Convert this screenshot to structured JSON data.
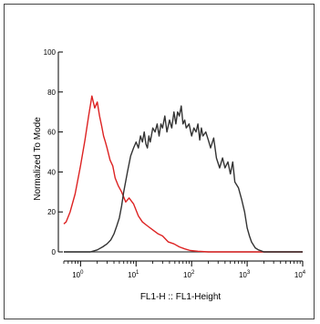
{
  "chart_data": {
    "type": "area",
    "xlabel": "FL1-H :: FL1-Height",
    "ylabel": "Normalized To Mode",
    "x_scale": "log",
    "xlim": [
      0.5,
      10000
    ],
    "ylim": [
      0,
      100
    ],
    "x_ticks": [
      {
        "value": 1,
        "base": "10",
        "exp": "0"
      },
      {
        "value": 10,
        "base": "10",
        "exp": "1"
      },
      {
        "value": 100,
        "base": "10",
        "exp": "2"
      },
      {
        "value": 1000,
        "base": "10",
        "exp": "3"
      },
      {
        "value": 10000,
        "base": "10",
        "exp": "4"
      }
    ],
    "y_ticks": [
      0,
      20,
      40,
      60,
      80,
      100
    ],
    "grid": false,
    "series": [
      {
        "color": "#dd2222",
        "x": [
          0.5,
          0.55,
          0.65,
          0.8,
          1.0,
          1.2,
          1.4,
          1.6,
          1.8,
          2.0,
          2.2,
          2.4,
          2.6,
          2.8,
          3.0,
          3.4,
          3.8,
          4.2,
          4.8,
          5.5,
          6.5,
          7.5,
          9,
          11,
          13,
          16,
          20,
          25,
          30,
          38,
          48,
          60,
          75,
          95,
          130,
          200,
          1000,
          10000
        ],
        "y": [
          14,
          15,
          20,
          29,
          43,
          56,
          68,
          78,
          72,
          75,
          68,
          63,
          58,
          55,
          52,
          46,
          43,
          37,
          33,
          30,
          25,
          27,
          24,
          18,
          15,
          13,
          11,
          9,
          8,
          5,
          4,
          2.5,
          1.5,
          0.7,
          0.3,
          0,
          0,
          0
        ]
      },
      {
        "color": "#333333",
        "x": [
          0.5,
          1.5,
          2.0,
          2.5,
          3.0,
          3.5,
          4.0,
          4.5,
          5.0,
          5.5,
          6.0,
          7.0,
          8.0,
          9.0,
          10,
          11,
          12,
          13,
          14,
          15,
          16,
          17,
          18,
          20,
          22,
          24,
          26,
          28,
          30,
          33,
          36,
          40,
          44,
          48,
          52,
          56,
          60,
          65,
          70,
          75,
          80,
          90,
          100,
          110,
          120,
          130,
          140,
          150,
          160,
          180,
          200,
          220,
          250,
          280,
          320,
          360,
          400,
          450,
          500,
          550,
          600,
          700,
          800,
          900,
          1000,
          1100,
          1200,
          1400,
          1600,
          1800,
          2000,
          2500,
          10000
        ],
        "y": [
          0,
          0,
          1,
          2.5,
          4,
          6,
          9,
          13,
          17,
          23,
          30,
          40,
          48,
          52,
          55,
          52,
          58,
          55,
          60,
          54,
          52,
          58,
          55,
          62,
          60,
          64,
          58,
          64,
          62,
          68,
          60,
          66,
          62,
          70,
          64,
          70,
          68,
          73,
          64,
          66,
          62,
          64,
          58,
          62,
          60,
          64,
          56,
          62,
          58,
          60,
          56,
          52,
          57,
          47,
          42,
          47,
          42,
          45,
          39,
          45,
          35,
          32,
          26,
          20,
          12,
          8,
          5,
          2,
          1,
          0.5,
          0,
          0,
          0
        ]
      }
    ]
  }
}
